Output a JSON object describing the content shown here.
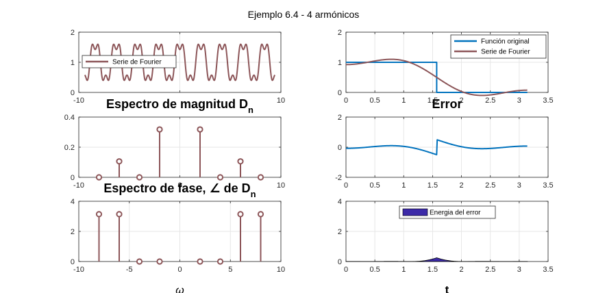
{
  "figure": {
    "title": "Ejemplo 6.4 - 4 armónicos"
  },
  "colors": {
    "fourier": "#8C5558",
    "original": "#0072BD",
    "energy": "#3C2AA8",
    "axis": "#262626",
    "grid": "#e6e6e6"
  },
  "chart_data": [
    {
      "id": "p1",
      "type": "line",
      "xlim": [
        -10,
        10
      ],
      "ylim": [
        0,
        2
      ],
      "xticks": [
        -10,
        0,
        10
      ],
      "xticklabels": [
        "-10",
        "",
        "10"
      ],
      "yticks": [
        0,
        1,
        2
      ],
      "yticklabels": [
        "0",
        "1",
        "2"
      ],
      "grid": true,
      "legend_position": "middle-left",
      "series": [
        {
          "name": "Serie de Fourier",
          "color": "#8C5558",
          "mean": 1,
          "a": 0.6366,
          "x_start": -9.42,
          "x_end": 9.42
        }
      ]
    },
    {
      "id": "p2",
      "type": "line",
      "xlim": [
        0,
        3.5
      ],
      "ylim": [
        0,
        2
      ],
      "xticks": [
        0,
        0.5,
        1,
        1.5,
        2,
        2.5,
        3,
        3.5
      ],
      "xticklabels": [
        "0",
        "0.5",
        "1",
        "1.5",
        "2",
        "2.5",
        "3",
        "3.5"
      ],
      "yticks": [
        0,
        1,
        2
      ],
      "yticklabels": [
        "0",
        "1",
        "2"
      ],
      "grid": true,
      "legend_position": "top-right",
      "series": [
        {
          "name": "Función original",
          "color": "#0072BD"
        },
        {
          "name": "Serie de Fourier",
          "color": "#8C5558"
        }
      ]
    },
    {
      "id": "p3",
      "type": "stem",
      "title": "Espectro de magnitud D",
      "title_sub": "n",
      "xlim": [
        -10,
        10
      ],
      "ylim": [
        0,
        0.4
      ],
      "xticks": [
        -10,
        0,
        10
      ],
      "xticklabels": [
        "-10",
        "0",
        "10"
      ],
      "yticks": [
        0,
        0.2,
        0.4
      ],
      "yticklabels": [
        "0",
        "0.2",
        "0.4"
      ],
      "grid": true,
      "color": "#8C5558",
      "x": [
        -8,
        -6,
        -4,
        -2,
        2,
        4,
        6,
        8
      ],
      "y": [
        0,
        0.106,
        0,
        0.318,
        0.318,
        0,
        0.106,
        0
      ]
    },
    {
      "id": "p4",
      "type": "line",
      "title": "Error",
      "xlim": [
        0,
        3.5
      ],
      "ylim": [
        -2,
        2
      ],
      "xticks": [
        0,
        0.5,
        1,
        1.5,
        2,
        2.5,
        3,
        3.5
      ],
      "xticklabels": [
        "0",
        "0.5",
        "1",
        "1.5",
        "2",
        "2.5",
        "3",
        "3.5"
      ],
      "yticks": [
        -2,
        0,
        2
      ],
      "yticklabels": [
        "-2",
        "0",
        "2"
      ],
      "grid": true,
      "color": "#0072BD"
    },
    {
      "id": "p5",
      "type": "stem",
      "title": "Espectro de fase, ∠ de D",
      "title_sub": "n",
      "xlim": [
        -10,
        10
      ],
      "ylim": [
        0,
        4
      ],
      "xticks": [
        -10,
        -5,
        0,
        5,
        10
      ],
      "xticklabels": [
        "-10",
        "-5",
        "0",
        "5",
        "10"
      ],
      "yticks": [
        0,
        2,
        4
      ],
      "yticklabels": [
        "0",
        "2",
        "4"
      ],
      "grid": true,
      "color": "#8C5558",
      "xlabel": "ω",
      "x": [
        -8,
        -6,
        -4,
        -2,
        2,
        4,
        6,
        8
      ],
      "y": [
        3.1416,
        3.1416,
        0,
        0,
        0,
        0,
        3.1416,
        3.1416
      ]
    },
    {
      "id": "p6",
      "type": "area",
      "xlim": [
        0,
        3.5
      ],
      "ylim": [
        0,
        4
      ],
      "xticks": [
        0,
        0.5,
        1,
        1.5,
        2,
        2.5,
        3,
        3.5
      ],
      "xticklabels": [
        "0",
        "0.5",
        "1",
        "1.5",
        "2",
        "2.5",
        "3",
        "3.5"
      ],
      "yticks": [
        0,
        2,
        4
      ],
      "yticklabels": [
        "0",
        "2",
        "4"
      ],
      "grid": true,
      "legend_position": "top-center",
      "xlabel": "t",
      "series": [
        {
          "name": "Energia del error",
          "color": "#3C2AA8"
        }
      ]
    }
  ]
}
